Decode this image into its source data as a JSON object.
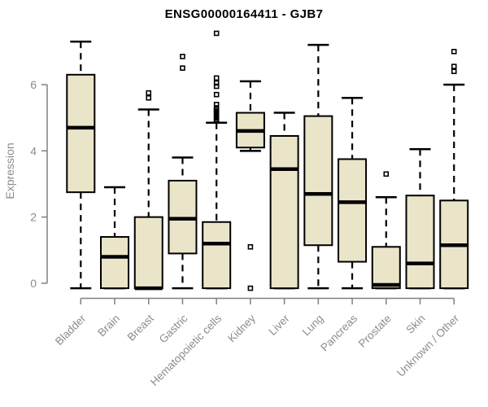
{
  "chart_data": {
    "type": "boxplot",
    "title": "ENSG00000164411 - GJB7",
    "ylabel": "Expression",
    "xlabel": "",
    "yticks": [
      0,
      2,
      4,
      6
    ],
    "ylim": [
      -0.45,
      7.8
    ],
    "grid": false,
    "legend": null,
    "categories": [
      "Bladder",
      "Brain",
      "Breast",
      "Gastric",
      "Hematopoietic cells",
      "Kidney",
      "Liver",
      "Lung",
      "Pancreas",
      "Prostate",
      "Skin",
      "Unknown / Other"
    ],
    "boxes": [
      {
        "category": "Bladder",
        "low": -0.15,
        "q1": 2.75,
        "median": 4.7,
        "q3": 6.3,
        "high": 7.3,
        "outliers": []
      },
      {
        "category": "Brain",
        "low": -0.15,
        "q1": -0.15,
        "median": 0.8,
        "q3": 1.4,
        "high": 2.9,
        "outliers": []
      },
      {
        "category": "Breast",
        "low": -0.15,
        "q1": -0.15,
        "median": -0.15,
        "q3": 2.0,
        "high": 5.25,
        "outliers": [
          5.6,
          5.75
        ]
      },
      {
        "category": "Gastric",
        "low": -0.15,
        "q1": 0.9,
        "median": 1.95,
        "q3": 3.1,
        "high": 3.8,
        "outliers": [
          6.5,
          6.85
        ]
      },
      {
        "category": "Hematopoietic cells",
        "low": -0.15,
        "q1": -0.15,
        "median": 1.2,
        "q3": 1.85,
        "high": 4.85,
        "outliers": [
          4.9,
          4.95,
          5.0,
          5.05,
          5.1,
          5.15,
          5.2,
          5.25,
          5.3,
          5.4,
          5.7,
          5.95,
          6.05,
          6.2,
          7.55
        ]
      },
      {
        "category": "Kidney",
        "low": 4.0,
        "q1": 4.1,
        "median": 4.6,
        "q3": 5.15,
        "high": 6.1,
        "outliers": [
          1.1,
          -0.15
        ]
      },
      {
        "category": "Liver",
        "low": -0.15,
        "q1": -0.15,
        "median": 3.45,
        "q3": 4.45,
        "high": 5.15,
        "outliers": []
      },
      {
        "category": "Lung",
        "low": -0.15,
        "q1": 1.15,
        "median": 2.7,
        "q3": 5.05,
        "high": 7.2,
        "outliers": []
      },
      {
        "category": "Pancreas",
        "low": -0.15,
        "q1": 0.65,
        "median": 2.45,
        "q3": 3.75,
        "high": 5.6,
        "outliers": []
      },
      {
        "category": "Prostate",
        "low": -0.15,
        "q1": -0.15,
        "median": -0.05,
        "q3": 1.1,
        "high": 2.6,
        "outliers": [
          3.3
        ]
      },
      {
        "category": "Skin",
        "low": -0.15,
        "q1": -0.15,
        "median": 0.6,
        "q3": 2.65,
        "high": 4.05,
        "outliers": []
      },
      {
        "category": "Unknown / Other",
        "low": -0.15,
        "q1": -0.15,
        "median": 1.15,
        "q3": 2.5,
        "high": 6.0,
        "outliers": [
          6.4,
          6.55,
          7.0
        ]
      }
    ],
    "colors": {
      "box_fill": "#EAE4C9",
      "box_stroke": "#000000",
      "median": "#000000",
      "whisker": "#000000",
      "outlier_stroke": "#000000",
      "axis": "#808080",
      "tick_label": "#8C8C8C",
      "title": "#000000",
      "background": "#FFFFFF"
    }
  }
}
